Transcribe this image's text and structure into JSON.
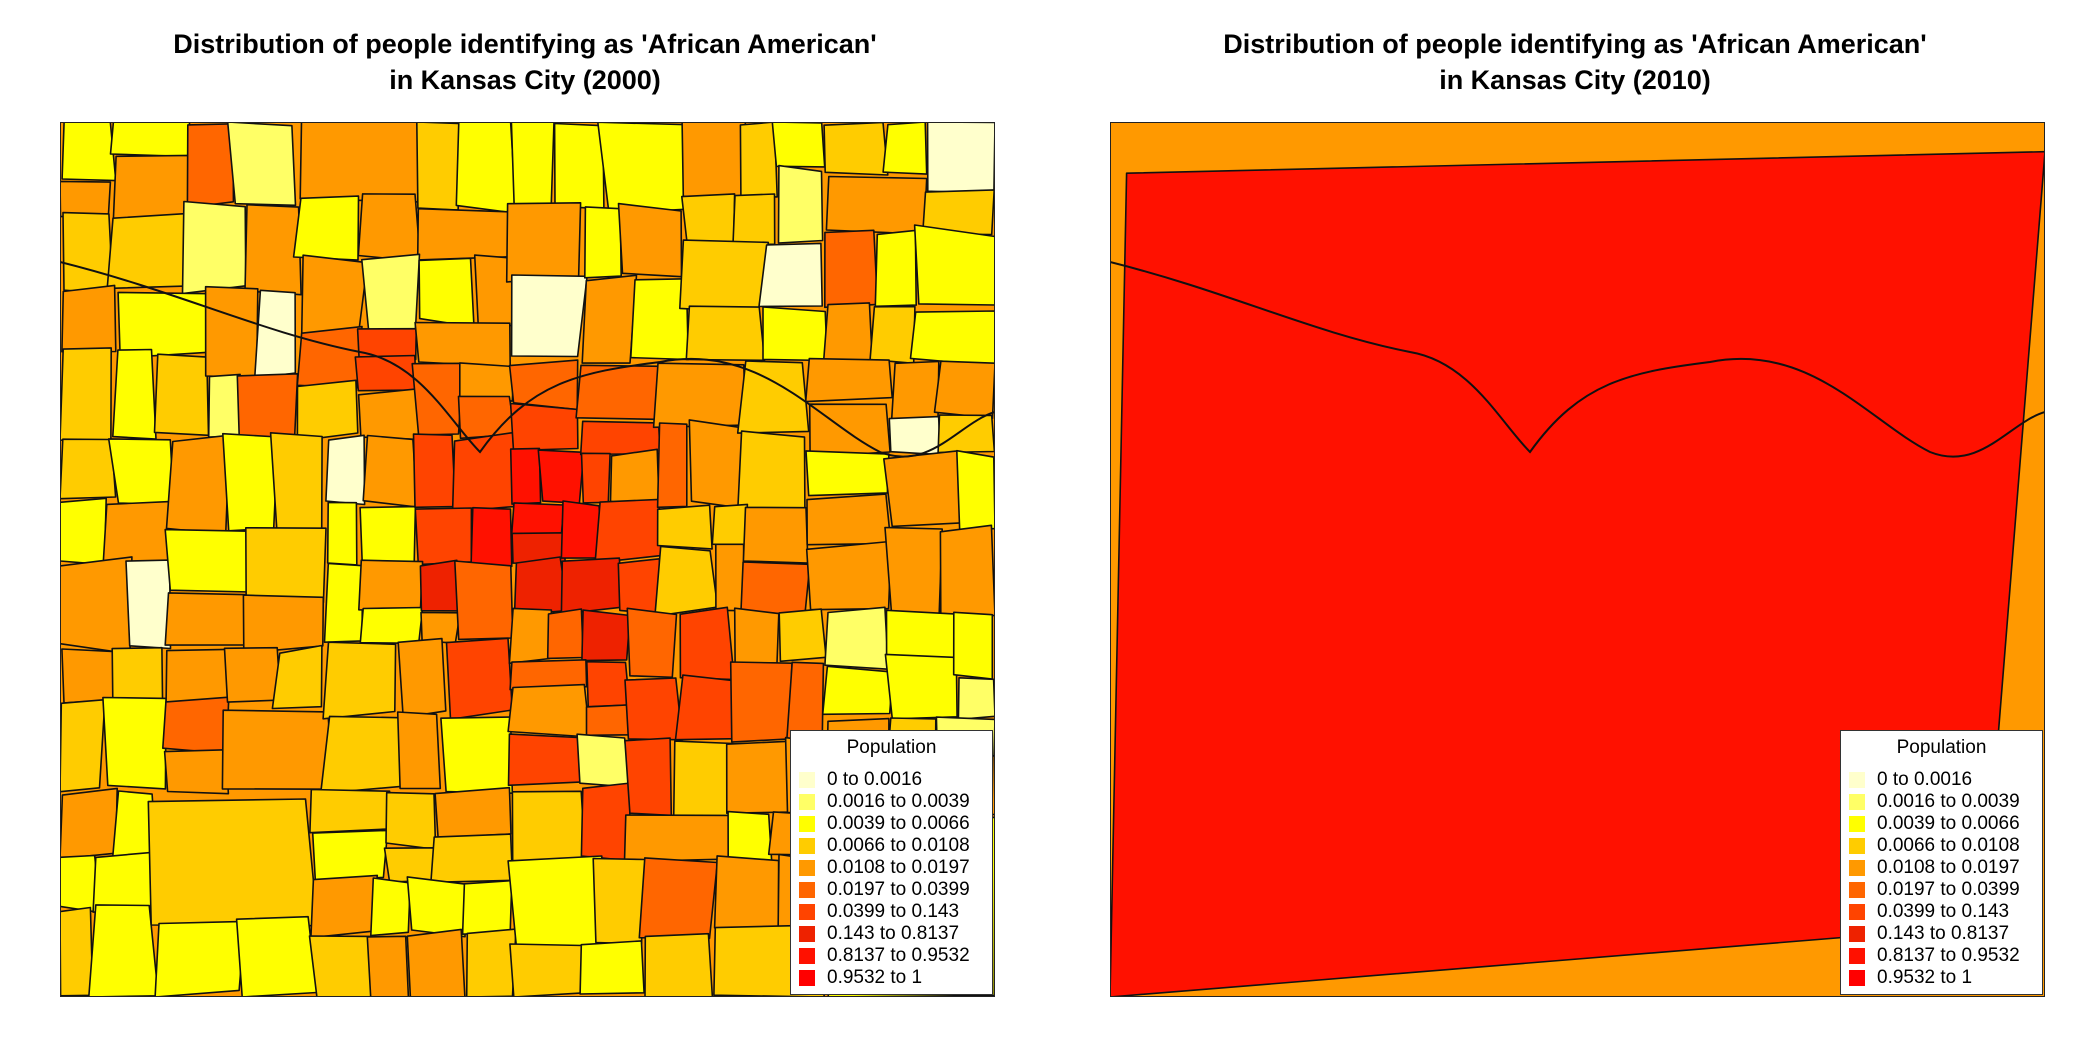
{
  "palette": [
    "#ffffcc",
    "#ffff66",
    "#ffff00",
    "#ffcc00",
    "#ff9900",
    "#ff6600",
    "#ff4400",
    "#ee2200",
    "#ff1100",
    "#ff0000"
  ],
  "legend_title": "Population",
  "legend_labels": [
    "0 to 0.0016",
    "0.0016 to 0.0039",
    "0.0039 to 0.0066",
    "0.0066 to 0.0108",
    "0.0108 to 0.0197",
    "0.0197 to 0.0399",
    "0.0399 to 0.143",
    "0.143 to 0.8137",
    "0.8137 to 0.9532",
    "0.9532 to 1"
  ],
  "maps": [
    {
      "title_line1": "Distribution of people identifying as 'African American'",
      "title_line2": "in Kansas City (2000)"
    },
    {
      "title_line1": "Distribution of people identifying as 'African American'",
      "title_line2": "in Kansas City (2010)"
    }
  ]
}
